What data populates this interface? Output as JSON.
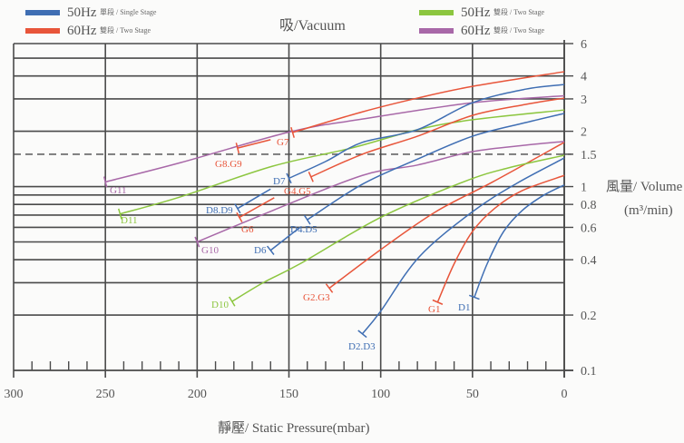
{
  "chart_data": {
    "type": "line",
    "title": "吸/Vacuum",
    "xlabel": "靜壓/ Static Pressure(mbar)",
    "ylabel": "風量/ Volume",
    "ylabel_unit": "(m³/min)",
    "xlim": [
      300,
      0
    ],
    "x_reversed": true,
    "ylim": [
      0.1,
      6
    ],
    "y_scale": "log",
    "grid": true,
    "x_ticks": [
      300,
      250,
      200,
      150,
      100,
      50,
      0
    ],
    "x_tick_labels": [
      "300",
      "250",
      "200",
      "150",
      "100",
      "50",
      "0"
    ],
    "x_minor_tick_step": 10,
    "y_gridlines": [
      6,
      5,
      4,
      3,
      2,
      1,
      0.9,
      0.8,
      0.7,
      0.6,
      0.5,
      0.4,
      0.3,
      0.2
    ],
    "y_dashed_line": 1.5,
    "y_ticks": [
      6,
      4,
      3,
      2,
      1.5,
      1,
      0.8,
      0.6,
      0.4,
      0.2,
      0.1
    ],
    "y_tick_labels": [
      "6",
      "4",
      "3",
      "2",
      "1.5",
      "1",
      "0.8",
      "0.6",
      "0.4",
      "0.2",
      "0.1"
    ],
    "legend": [
      {
        "hz": "50Hz",
        "desc": "單段 / Single Stage",
        "color": "#3f6eb3",
        "placement": "top-left"
      },
      {
        "hz": "60Hz",
        "desc": "雙段 / Two Stage",
        "color": "#e8553a",
        "placement": "top-left"
      },
      {
        "hz": "50Hz",
        "desc": "雙段 / Two Stage",
        "color": "#8cc63f",
        "placement": "top-right"
      },
      {
        "hz": "60Hz",
        "desc": "雙段 / Two Stage",
        "color": "#a868a8",
        "placement": "top-right"
      }
    ],
    "series": [
      {
        "name": "D1",
        "legend": 0,
        "points": [
          [
            49,
            0.25
          ],
          [
            42,
            0.38
          ],
          [
            33,
            0.57
          ],
          [
            23,
            0.74
          ],
          [
            11,
            0.9
          ],
          [
            0,
            1.02
          ]
        ]
      },
      {
        "name": "G1",
        "legend": 1,
        "points": [
          [
            69,
            0.235
          ],
          [
            60,
            0.38
          ],
          [
            50,
            0.57
          ],
          [
            38,
            0.76
          ],
          [
            23,
            0.95
          ],
          [
            0,
            1.15
          ]
        ]
      },
      {
        "name": "D2.D3",
        "legend": 0,
        "points": [
          [
            110,
            0.158
          ],
          [
            100,
            0.21
          ],
          [
            79,
            0.415
          ],
          [
            50,
            0.73
          ],
          [
            26,
            1.04
          ],
          [
            0,
            1.43
          ]
        ]
      },
      {
        "name": "G2.G3",
        "legend": 1,
        "points": [
          [
            128,
            0.28
          ],
          [
            100,
            0.454
          ],
          [
            70,
            0.73
          ],
          [
            39,
            1.06
          ],
          [
            0,
            1.74
          ]
        ]
      },
      {
        "name": "D10",
        "legend": 2,
        "points": [
          [
            181,
            0.237
          ],
          [
            164,
            0.3
          ],
          [
            144,
            0.38
          ],
          [
            100,
            0.68
          ],
          [
            55,
            1.06
          ],
          [
            31,
            1.26
          ],
          [
            0,
            1.48
          ]
        ]
      },
      {
        "name": "D11",
        "legend": 2,
        "points": [
          [
            242,
            0.71
          ],
          [
            209,
            0.88
          ],
          [
            159,
            1.29
          ],
          [
            116,
            1.62
          ],
          [
            80,
            2.04
          ],
          [
            50,
            2.31
          ],
          [
            0,
            2.61
          ]
        ]
      },
      {
        "name": "G11",
        "legend": 3,
        "points": [
          [
            250,
            1.06
          ],
          [
            209,
            1.35
          ],
          [
            149,
            1.99
          ],
          [
            110,
            2.33
          ],
          [
            50,
            2.86
          ],
          [
            0,
            3.12
          ]
        ]
      },
      {
        "name": "G10",
        "legend": 3,
        "points": [
          [
            200,
            0.5
          ],
          [
            159,
            0.74
          ],
          [
            110,
            1.15
          ],
          [
            80,
            1.31
          ],
          [
            50,
            1.55
          ],
          [
            21,
            1.68
          ],
          [
            0,
            1.76
          ]
        ]
      },
      {
        "name": "D4.D5",
        "legend": 0,
        "points": [
          [
            140,
            0.66
          ],
          [
            110,
            1.03
          ],
          [
            80,
            1.41
          ],
          [
            50,
            1.88
          ],
          [
            21,
            2.23
          ],
          [
            0,
            2.5
          ]
        ]
      },
      {
        "name": "G4.G5",
        "legend": 1,
        "points": [
          [
            138,
            1.13
          ],
          [
            110,
            1.5
          ],
          [
            80,
            1.88
          ],
          [
            50,
            2.44
          ],
          [
            21,
            2.8
          ],
          [
            0,
            3.03
          ]
        ]
      },
      {
        "name": "D7",
        "legend": 0,
        "points": [
          [
            150,
            1.11
          ],
          [
            130,
            1.37
          ],
          [
            110,
            1.74
          ],
          [
            80,
            2.04
          ],
          [
            50,
            2.86
          ],
          [
            21,
            3.39
          ],
          [
            0,
            3.59
          ]
        ]
      },
      {
        "name": "G7",
        "legend": 1,
        "points": [
          [
            148,
            1.97
          ],
          [
            110,
            2.55
          ],
          [
            80,
            3.03
          ],
          [
            50,
            3.51
          ],
          [
            0,
            4.22
          ]
        ]
      },
      {
        "name": "G8.G9",
        "legend": 1,
        "points": [
          [
            178,
            1.62
          ],
          [
            160,
            1.8
          ]
        ]
      },
      {
        "name": "D8.D9",
        "legend": 0,
        "points": [
          [
            178,
            0.76
          ],
          [
            160,
            0.97
          ]
        ]
      },
      {
        "name": "G6",
        "legend": 1,
        "points": [
          [
            177,
            0.68
          ],
          [
            158,
            0.87
          ]
        ]
      },
      {
        "name": "D6",
        "legend": 0,
        "points": [
          [
            160,
            0.45
          ],
          [
            144,
            0.6
          ]
        ]
      }
    ]
  }
}
